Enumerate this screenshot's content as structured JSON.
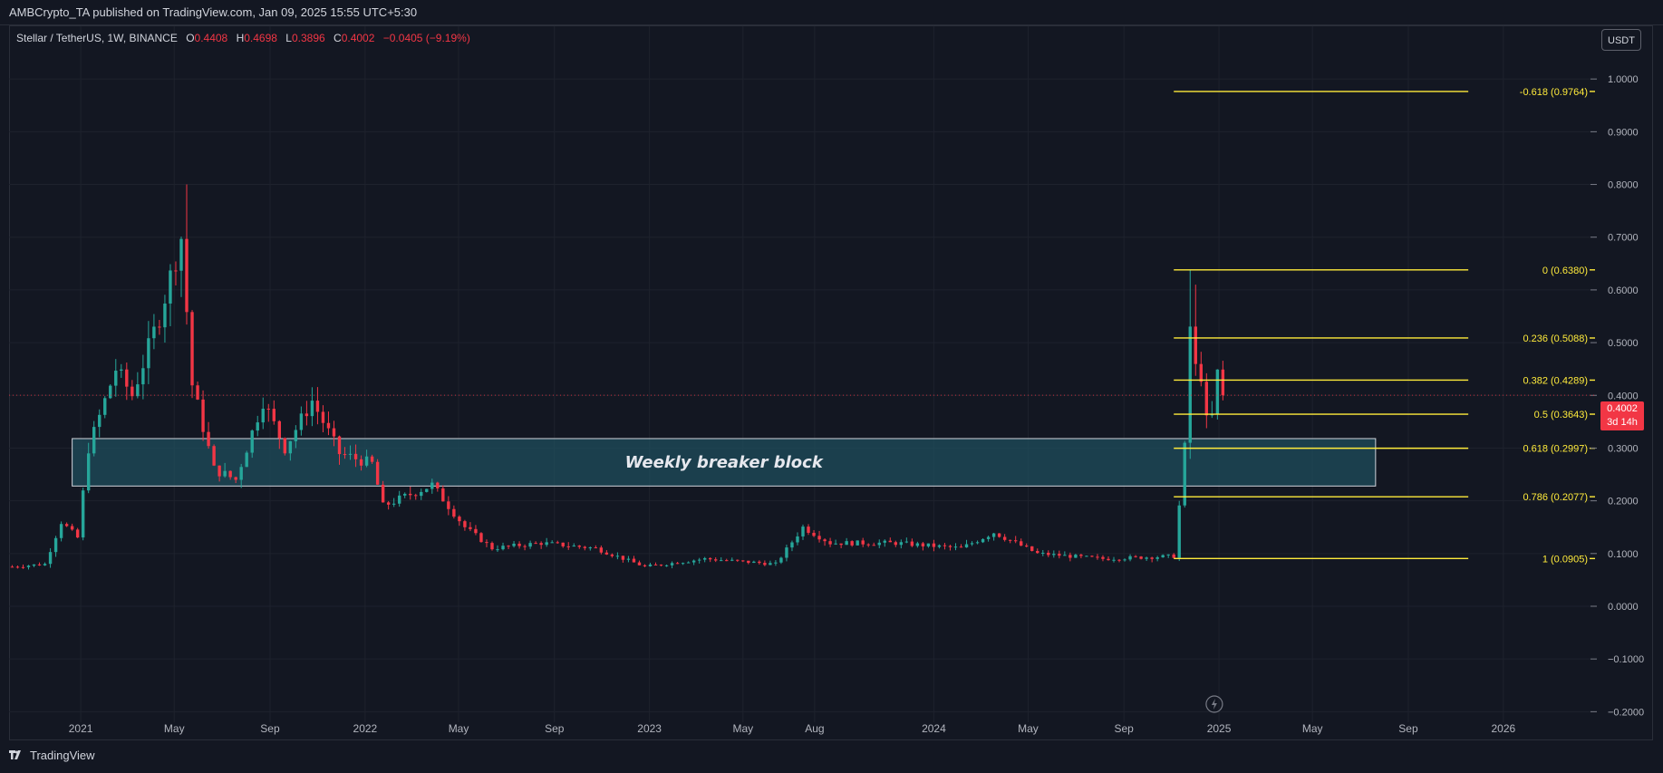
{
  "header": {
    "publisher": "AMBCrypto_TA published on TradingView.com, Jan 09, 2025 15:55 UTC+5:30"
  },
  "legend": {
    "symbol": "Stellar / TetherUS, 1W, BINANCE",
    "open_label": "O",
    "open": "0.4408",
    "high_label": "H",
    "high": "0.4698",
    "low_label": "L",
    "low": "0.3896",
    "close_label": "C",
    "close": "0.4002",
    "change": "−0.0405 (−9.19%)"
  },
  "currency_button": "USDT",
  "price_tag": {
    "price": "0.4002",
    "countdown": "3d 14h"
  },
  "branding": {
    "name": "TradingView",
    "logo_icon": "tradingview-logo-icon"
  },
  "colors": {
    "up": "#26a69a",
    "down": "#f23645",
    "fib": "#ffeb3b",
    "zone_fill": "#1f4e5c",
    "background": "#131722"
  },
  "chart_data": {
    "type": "candlestick",
    "symbol": "Stellar / TetherUS",
    "interval": "1W",
    "exchange": "BINANCE",
    "ylim": [
      -0.22,
      1.1
    ],
    "y_ticks": [
      "1.0000",
      "0.9000",
      "0.8000",
      "0.7000",
      "0.6000",
      "0.5000",
      "0.4000",
      "0.3000",
      "0.2000",
      "0.1000",
      "0.0000",
      "−0.1000",
      "−0.2000"
    ],
    "y_tick_values": [
      1.0,
      0.9,
      0.8,
      0.7,
      0.6,
      0.5,
      0.4,
      0.3,
      0.2,
      0.1,
      0.0,
      -0.1,
      -0.2
    ],
    "x_ticks": [
      {
        "label": "2021",
        "date": "2021-01-01"
      },
      {
        "label": "May",
        "date": "2021-05-01"
      },
      {
        "label": "Sep",
        "date": "2021-09-01"
      },
      {
        "label": "2022",
        "date": "2022-01-01"
      },
      {
        "label": "May",
        "date": "2022-05-01"
      },
      {
        "label": "Sep",
        "date": "2022-09-01"
      },
      {
        "label": "2023",
        "date": "2023-01-01"
      },
      {
        "label": "May",
        "date": "2023-05-01"
      },
      {
        "label": "Aug",
        "date": "2023-08-01"
      },
      {
        "label": "2024",
        "date": "2024-01-01"
      },
      {
        "label": "May",
        "date": "2024-05-01"
      },
      {
        "label": "Sep",
        "date": "2024-09-01"
      },
      {
        "label": "2025",
        "date": "2025-01-01"
      },
      {
        "label": "May",
        "date": "2025-05-01"
      },
      {
        "label": "Sep",
        "date": "2025-09-01"
      },
      {
        "label": "2026",
        "date": "2026-01-01"
      }
    ],
    "x_range": [
      "2020-10-01",
      "2026-05-01"
    ],
    "key_points": [
      {
        "date": "2020-10-05",
        "price": 0.075
      },
      {
        "date": "2020-11-16",
        "price": 0.08
      },
      {
        "date": "2020-12-07",
        "price": 0.16
      },
      {
        "date": "2020-12-28",
        "price": 0.13
      },
      {
        "date": "2021-01-11",
        "price": 0.3
      },
      {
        "date": "2021-02-15",
        "price": 0.45
      },
      {
        "date": "2021-03-08",
        "price": 0.4
      },
      {
        "date": "2021-04-12",
        "price": 0.55
      },
      {
        "date": "2021-05-10",
        "price": 0.7
      },
      {
        "date": "2021-05-24",
        "price": 0.42
      },
      {
        "date": "2021-06-21",
        "price": 0.26
      },
      {
        "date": "2021-07-19",
        "price": 0.24
      },
      {
        "date": "2021-08-23",
        "price": 0.39
      },
      {
        "date": "2021-09-20",
        "price": 0.3
      },
      {
        "date": "2021-10-25",
        "price": 0.39
      },
      {
        "date": "2021-11-29",
        "price": 0.29
      },
      {
        "date": "2022-01-10",
        "price": 0.27
      },
      {
        "date": "2022-01-24",
        "price": 0.19
      },
      {
        "date": "2022-03-28",
        "price": 0.23
      },
      {
        "date": "2022-05-09",
        "price": 0.15
      },
      {
        "date": "2022-06-13",
        "price": 0.11
      },
      {
        "date": "2022-08-15",
        "price": 0.12
      },
      {
        "date": "2022-10-24",
        "price": 0.11
      },
      {
        "date": "2022-12-26",
        "price": 0.075
      },
      {
        "date": "2023-03-13",
        "price": 0.09
      },
      {
        "date": "2023-06-12",
        "price": 0.08
      },
      {
        "date": "2023-07-17",
        "price": 0.15
      },
      {
        "date": "2023-08-21",
        "price": 0.12
      },
      {
        "date": "2023-11-13",
        "price": 0.12
      },
      {
        "date": "2024-02-05",
        "price": 0.11
      },
      {
        "date": "2024-03-18",
        "price": 0.14
      },
      {
        "date": "2024-05-13",
        "price": 0.1
      },
      {
        "date": "2024-08-05",
        "price": 0.09
      },
      {
        "date": "2024-11-04",
        "price": 0.095
      },
      {
        "date": "2024-11-11",
        "price": 0.19
      },
      {
        "date": "2024-11-18",
        "price": 0.3
      },
      {
        "date": "2024-11-25",
        "price": 0.53
      },
      {
        "date": "2024-12-02",
        "price": 0.45
      },
      {
        "date": "2024-12-09",
        "price": 0.44
      },
      {
        "date": "2024-12-16",
        "price": 0.35
      },
      {
        "date": "2024-12-23",
        "price": 0.36
      },
      {
        "date": "2024-12-30",
        "price": 0.44
      },
      {
        "date": "2025-01-06",
        "price": 0.4002
      }
    ],
    "wick_highs": [
      {
        "date": "2021-05-17",
        "price": 0.8
      },
      {
        "date": "2024-11-25",
        "price": 0.638
      },
      {
        "date": "2024-12-02",
        "price": 0.61
      }
    ],
    "fibonacci": {
      "start_date": "2024-11-04",
      "end_date": "2024-11-25",
      "line_x_start_date": "2024-11-04",
      "line_x_end_date": "2025-11-17",
      "levels": [
        {
          "ratio": "-0.618",
          "label": "-0.618 (0.9764)",
          "price": 0.9764
        },
        {
          "ratio": "0",
          "label": "0 (0.6380)",
          "price": 0.638
        },
        {
          "ratio": "0.236",
          "label": "0.236 (0.5088)",
          "price": 0.5088
        },
        {
          "ratio": "0.382",
          "label": "0.382 (0.4289)",
          "price": 0.4289
        },
        {
          "ratio": "0.5",
          "label": "0.5 (0.3643)",
          "price": 0.3643
        },
        {
          "ratio": "0.618",
          "label": "0.618 (0.2997)",
          "price": 0.2997
        },
        {
          "ratio": "0.786",
          "label": "0.786 (0.2077)",
          "price": 0.2077
        },
        {
          "ratio": "1",
          "label": "1 (0.0905)",
          "price": 0.0905
        }
      ]
    },
    "zone": {
      "label": "Weekly breaker block",
      "start_date": "2020-12-21",
      "end_date": "2025-07-21",
      "top": 0.318,
      "bottom": 0.228
    },
    "last_price": 0.4002
  }
}
